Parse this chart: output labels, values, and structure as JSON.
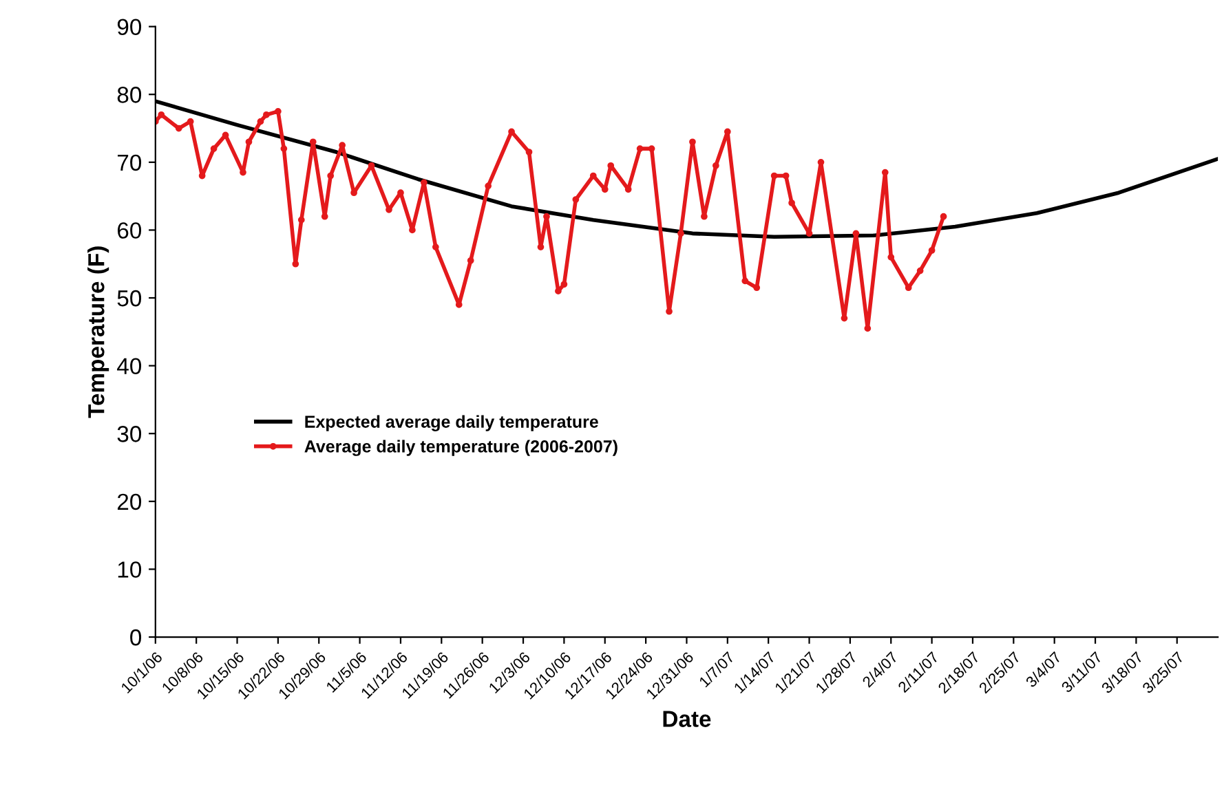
{
  "chart_data": {
    "type": "line",
    "xlabel": "Date",
    "ylabel": "Temperature (F)",
    "ylim": [
      0,
      90
    ],
    "yticks": [
      0,
      10,
      20,
      30,
      40,
      50,
      60,
      70,
      80,
      90
    ],
    "xlim": [
      "2006-10-01",
      "2007-04-01"
    ],
    "xticks": [
      {
        "value": "2006-10-01",
        "label": "10/1/06"
      },
      {
        "value": "2006-10-08",
        "label": "10/8/06"
      },
      {
        "value": "2006-10-15",
        "label": "10/15/06"
      },
      {
        "value": "2006-10-22",
        "label": "10/22/06"
      },
      {
        "value": "2006-10-29",
        "label": "10/29/06"
      },
      {
        "value": "2006-11-05",
        "label": "11/5/06"
      },
      {
        "value": "2006-11-12",
        "label": "11/12/06"
      },
      {
        "value": "2006-11-19",
        "label": "11/19/06"
      },
      {
        "value": "2006-11-26",
        "label": "11/26/06"
      },
      {
        "value": "2006-12-03",
        "label": "12/3/06"
      },
      {
        "value": "2006-12-10",
        "label": "12/10/06"
      },
      {
        "value": "2006-12-17",
        "label": "12/17/06"
      },
      {
        "value": "2006-12-24",
        "label": "12/24/06"
      },
      {
        "value": "2006-12-31",
        "label": "12/31/06"
      },
      {
        "value": "2007-01-07",
        "label": "1/7/07"
      },
      {
        "value": "2007-01-14",
        "label": "1/14/07"
      },
      {
        "value": "2007-01-21",
        "label": "1/21/07"
      },
      {
        "value": "2007-01-28",
        "label": "1/28/07"
      },
      {
        "value": "2007-02-04",
        "label": "2/4/07"
      },
      {
        "value": "2007-02-11",
        "label": "2/11/07"
      },
      {
        "value": "2007-02-18",
        "label": "2/18/07"
      },
      {
        "value": "2007-02-25",
        "label": "2/25/07"
      },
      {
        "value": "2007-03-04",
        "label": "3/4/07"
      },
      {
        "value": "2007-03-11",
        "label": "3/11/07"
      },
      {
        "value": "2007-03-18",
        "label": "3/18/07"
      },
      {
        "value": "2007-03-25",
        "label": "3/25/07"
      }
    ],
    "grid": false,
    "legend": "center left",
    "line_style": "solid",
    "series": [
      {
        "name": "Expected average daily temperature",
        "color": "#000000",
        "marker": "none",
        "x": [
          "2006-10-01",
          "2006-10-15",
          "2006-11-01",
          "2006-11-15",
          "2006-12-01",
          "2006-12-15",
          "2007-01-01",
          "2007-01-15",
          "2007-02-01",
          "2007-02-15",
          "2007-03-01",
          "2007-03-15",
          "2007-04-01"
        ],
        "values": [
          79,
          75.5,
          71.5,
          67.5,
          63.5,
          61.5,
          59.5,
          59,
          59.2,
          60.5,
          62.5,
          65.5,
          70.5
        ]
      },
      {
        "name": "Average daily temperature (2006-2007)",
        "color": "#e41a1c",
        "marker": "circle",
        "x": [
          "2006-10-01",
          "2006-10-02",
          "2006-10-05",
          "2006-10-07",
          "2006-10-09",
          "2006-10-11",
          "2006-10-13",
          "2006-10-16",
          "2006-10-17",
          "2006-10-19",
          "2006-10-20",
          "2006-10-22",
          "2006-10-23",
          "2006-10-25",
          "2006-10-26",
          "2006-10-28",
          "2006-10-30",
          "2006-10-31",
          "2006-11-02",
          "2006-11-04",
          "2006-11-07",
          "2006-11-10",
          "2006-11-12",
          "2006-11-14",
          "2006-11-16",
          "2006-11-18",
          "2006-11-22",
          "2006-11-24",
          "2006-11-27",
          "2006-12-01",
          "2006-12-04",
          "2006-12-06",
          "2006-12-07",
          "2006-12-09",
          "2006-12-10",
          "2006-12-12",
          "2006-12-15",
          "2006-12-17",
          "2006-12-18",
          "2006-12-21",
          "2006-12-23",
          "2006-12-25",
          "2006-12-28",
          "2006-12-30",
          "2007-01-01",
          "2007-01-03",
          "2007-01-05",
          "2007-01-07",
          "2007-01-10",
          "2007-01-12",
          "2007-01-15",
          "2007-01-17",
          "2007-01-18",
          "2007-01-21",
          "2007-01-23",
          "2007-01-27",
          "2007-01-29",
          "2007-01-31",
          "2007-02-03",
          "2007-02-04",
          "2007-02-07",
          "2007-02-09",
          "2007-02-11",
          "2007-02-13"
        ],
        "values": [
          76,
          77,
          75,
          76,
          68,
          72,
          74,
          68.5,
          73,
          76,
          77,
          77.5,
          72,
          55,
          61.5,
          73,
          62,
          68,
          72.5,
          65.5,
          69.5,
          63,
          65.5,
          60,
          67,
          57.5,
          49,
          55.5,
          66.5,
          74.5,
          71.5,
          57.5,
          62,
          51,
          52,
          64.5,
          68,
          66,
          69.5,
          66,
          72,
          72,
          48,
          59.5,
          73,
          62,
          69.5,
          74.5,
          52.5,
          51.5,
          68,
          68,
          64,
          59.5,
          70,
          47,
          59.5,
          45.5,
          68.5,
          56,
          51.5,
          54,
          57,
          62
        ]
      }
    ]
  }
}
